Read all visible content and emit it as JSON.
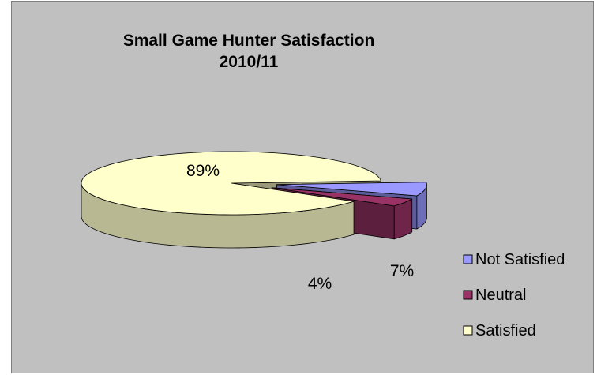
{
  "chart_data": {
    "type": "pie",
    "style": "3d-exploded",
    "title": "Small Game Hunter Satisfaction",
    "subtitle": "2010/11",
    "categories": [
      "Not Satisfied",
      "Neutral",
      "Satisfied"
    ],
    "values": [
      7,
      4,
      89
    ],
    "data_labels": [
      "7%",
      "4%",
      "89%"
    ],
    "colors": {
      "Not Satisfied": "#9999ff",
      "Neutral": "#993366",
      "Satisfied": "#ffffcc"
    },
    "legend_position": "right",
    "background": "#c0c0c0"
  }
}
